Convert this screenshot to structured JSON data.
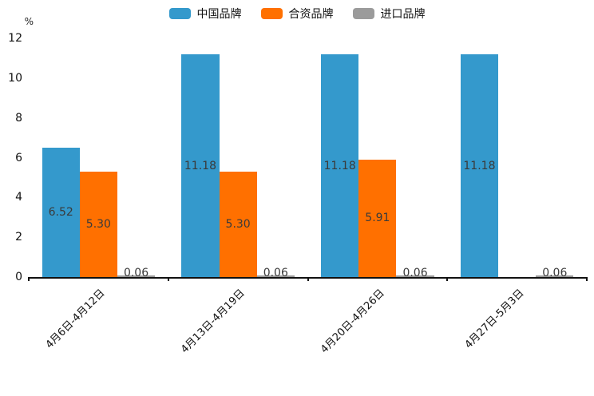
{
  "chart_data": {
    "type": "bar",
    "title": "",
    "unit_label": "%",
    "categories": [
      "4月6日-4月12日",
      "4月13日-4月19日",
      "4月20日-4月26日",
      "4月27日-5月3日"
    ],
    "series": [
      {
        "name": "中国品牌",
        "color": "#3499cc",
        "values": [
          6.52,
          11.18,
          11.18,
          11.18
        ]
      },
      {
        "name": "合资品牌",
        "color": "#ff7000",
        "values": [
          5.3,
          5.3,
          5.91,
          null
        ]
      },
      {
        "name": "进口品牌",
        "color": "#9b9b9b",
        "values": [
          0.06,
          0.06,
          0.06,
          0.06
        ]
      }
    ],
    "value_labels": {
      "中国品牌": [
        "6.52",
        "11.18",
        "11.18",
        "11.18"
      ],
      "合资品牌": [
        "5.30",
        "5.30",
        "5.91",
        null
      ],
      "进口品牌": [
        "0.06",
        "0.06",
        "0.06",
        "0.06"
      ]
    },
    "ylim": [
      0,
      12
    ],
    "yticks": [
      0,
      2,
      4,
      6,
      8,
      10,
      12
    ],
    "grid": false,
    "legend_position": "top",
    "axis_color": "#111111",
    "label_color": "#3a3a3a"
  }
}
